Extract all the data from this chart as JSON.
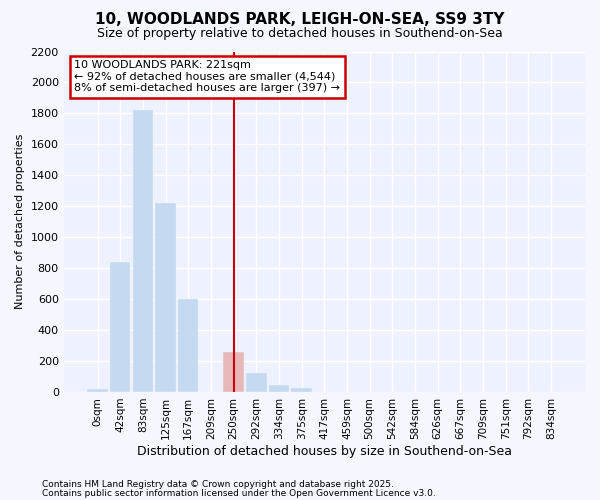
{
  "title1": "10, WOODLANDS PARK, LEIGH-ON-SEA, SS9 3TY",
  "title2": "Size of property relative to detached houses in Southend-on-Sea",
  "xlabel": "Distribution of detached houses by size in Southend-on-Sea",
  "ylabel": "Number of detached properties",
  "categories": [
    "0sqm",
    "42sqm",
    "83sqm",
    "125sqm",
    "167sqm",
    "209sqm",
    "250sqm",
    "292sqm",
    "334sqm",
    "375sqm",
    "417sqm",
    "459sqm",
    "500sqm",
    "542sqm",
    "584sqm",
    "626sqm",
    "667sqm",
    "709sqm",
    "751sqm",
    "792sqm",
    "834sqm"
  ],
  "values": [
    20,
    840,
    1820,
    1220,
    600,
    0,
    255,
    125,
    45,
    25,
    0,
    0,
    0,
    0,
    0,
    0,
    0,
    0,
    0,
    0,
    0
  ],
  "bar_color_normal": "#c5d9f0",
  "bar_color_highlight": "#e8b8b8",
  "highlight_index": 6,
  "vline_x_index": 6,
  "ylim_max": 2200,
  "yticks": [
    0,
    200,
    400,
    600,
    800,
    1000,
    1200,
    1400,
    1600,
    1800,
    2000,
    2200
  ],
  "annotation_text": "10 WOODLANDS PARK: 221sqm\n← 92% of detached houses are smaller (4,544)\n8% of semi-detached houses are larger (397) →",
  "annotation_box_edgecolor": "#cc0000",
  "vline_color": "#cc0000",
  "footer1": "Contains HM Land Registry data © Crown copyright and database right 2025.",
  "footer2": "Contains public sector information licensed under the Open Government Licence v3.0.",
  "bg_color": "#f5f7ff",
  "plot_bg_color": "#eef2ff",
  "grid_color": "#ffffff",
  "title1_fontsize": 11,
  "title2_fontsize": 9,
  "xlabel_fontsize": 9,
  "ylabel_fontsize": 8,
  "tick_fontsize": 7.5,
  "ytick_fontsize": 8,
  "annotation_fontsize": 8,
  "footer_fontsize": 6.5
}
